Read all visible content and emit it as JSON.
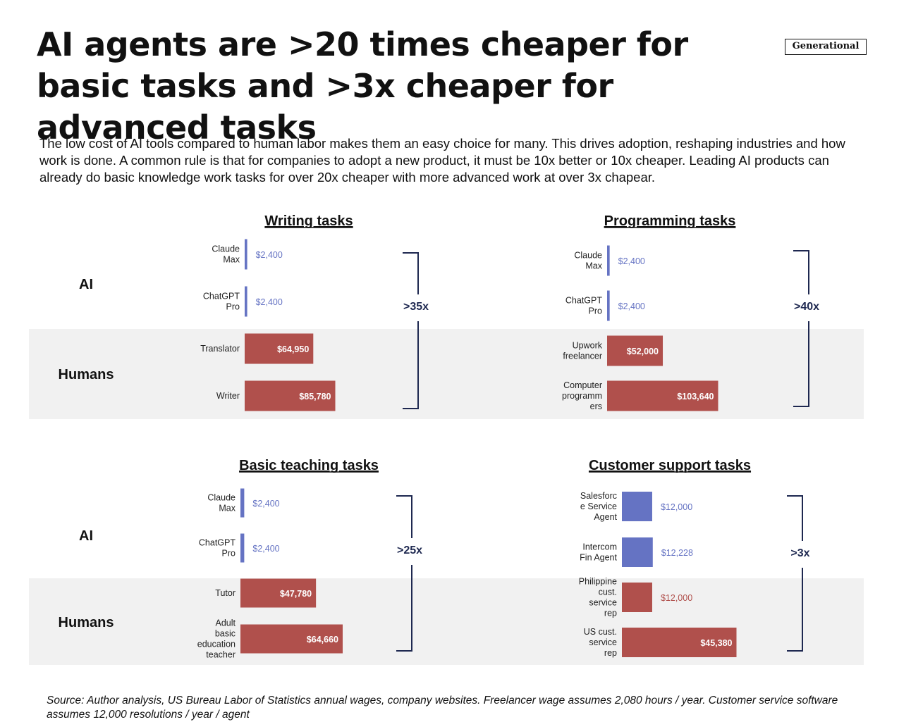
{
  "header": {
    "title": "AI agents are >20 times cheaper for basic tasks and >3x cheaper for advanced tasks",
    "badge": "Generational",
    "subtitle": "The low cost of AI tools compared to human labor makes them an easy choice for many. This drives adoption, reshaping industries and how work is done. A common rule is that for companies to adopt a new product, it must be 10x better or 10x cheaper. Leading AI products can already do basic knowledge work tasks for over 20x cheaper with more advanced work at over 3x chapear."
  },
  "row_labels": {
    "ai": "AI",
    "humans": "Humans"
  },
  "colors": {
    "ai": "#6573c3",
    "human": "#b0504c",
    "bracket": "#1e2850",
    "band": "#f1f1f1"
  },
  "chart_data": [
    {
      "type": "bar",
      "orientation": "horizontal",
      "title": "Writing tasks",
      "categories": [
        [
          "Claude",
          "Max"
        ],
        [
          "ChatGPT",
          "Pro"
        ],
        [
          "Translator"
        ],
        [
          "Writer"
        ]
      ],
      "groups": [
        "ai",
        "ai",
        "human",
        "human"
      ],
      "values": [
        2400,
        2400,
        64950,
        85780
      ],
      "value_labels": [
        "$2,400",
        "$2,400",
        "$64,950",
        "$85,780"
      ],
      "multiplier": ">35x"
    },
    {
      "type": "bar",
      "orientation": "horizontal",
      "title": "Programming tasks",
      "categories": [
        [
          "Claude",
          "Max"
        ],
        [
          "ChatGPT",
          "Pro"
        ],
        [
          "Upwork",
          "freelancer"
        ],
        [
          "Computer",
          "programm",
          "ers"
        ]
      ],
      "groups": [
        "ai",
        "ai",
        "human",
        "human"
      ],
      "values": [
        2400,
        2400,
        52000,
        103640
      ],
      "value_labels": [
        "$2,400",
        "$2,400",
        "$52,000",
        "$103,640"
      ],
      "multiplier": ">40x"
    },
    {
      "type": "bar",
      "orientation": "horizontal",
      "title": "Basic teaching tasks",
      "categories": [
        [
          "Claude",
          "Max"
        ],
        [
          "ChatGPT",
          "Pro"
        ],
        [
          "Tutor"
        ],
        [
          "Adult",
          "basic",
          "education",
          "teacher"
        ]
      ],
      "groups": [
        "ai",
        "ai",
        "human",
        "human"
      ],
      "values": [
        2400,
        2400,
        47780,
        64660
      ],
      "value_labels": [
        "$2,400",
        "$2,400",
        "$47,780",
        "$64,660"
      ],
      "multiplier": ">25x"
    },
    {
      "type": "bar",
      "orientation": "horizontal",
      "title": "Customer support tasks",
      "categories": [
        [
          "Salesforc",
          "e Service",
          "Agent"
        ],
        [
          "Intercom",
          "Fin Agent"
        ],
        [
          "Philippine",
          "cust.",
          "service",
          "rep"
        ],
        [
          "US cust.",
          "service",
          "rep"
        ]
      ],
      "groups": [
        "ai",
        "ai",
        "human",
        "human"
      ],
      "values": [
        12000,
        12228,
        12000,
        45380
      ],
      "value_labels": [
        "$12,000",
        "$12,228",
        "$12,000",
        "$45,380"
      ],
      "multiplier": ">3x"
    }
  ],
  "source": "Source: Author analysis, US Bureau Labor of Statistics annual wages, company websites. Freelancer wage assumes 2,080 hours / year. Customer service software assumes 12,000 resolutions / year / agent"
}
